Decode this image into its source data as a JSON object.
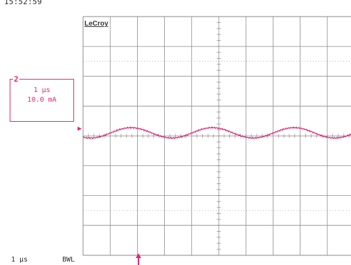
{
  "timestamp": "15:52:59",
  "brand": "LeCroy",
  "channel": {
    "number": "2",
    "timebase": "1 µs",
    "scale": "10.0 mA",
    "color": "#e0277a"
  },
  "status": {
    "timebase": "1 µs",
    "bandwidth_limit": "BWL"
  },
  "colors": {
    "grid": "#8a8a8a",
    "trace": "#e0277a",
    "background": "#ffffff"
  }
}
